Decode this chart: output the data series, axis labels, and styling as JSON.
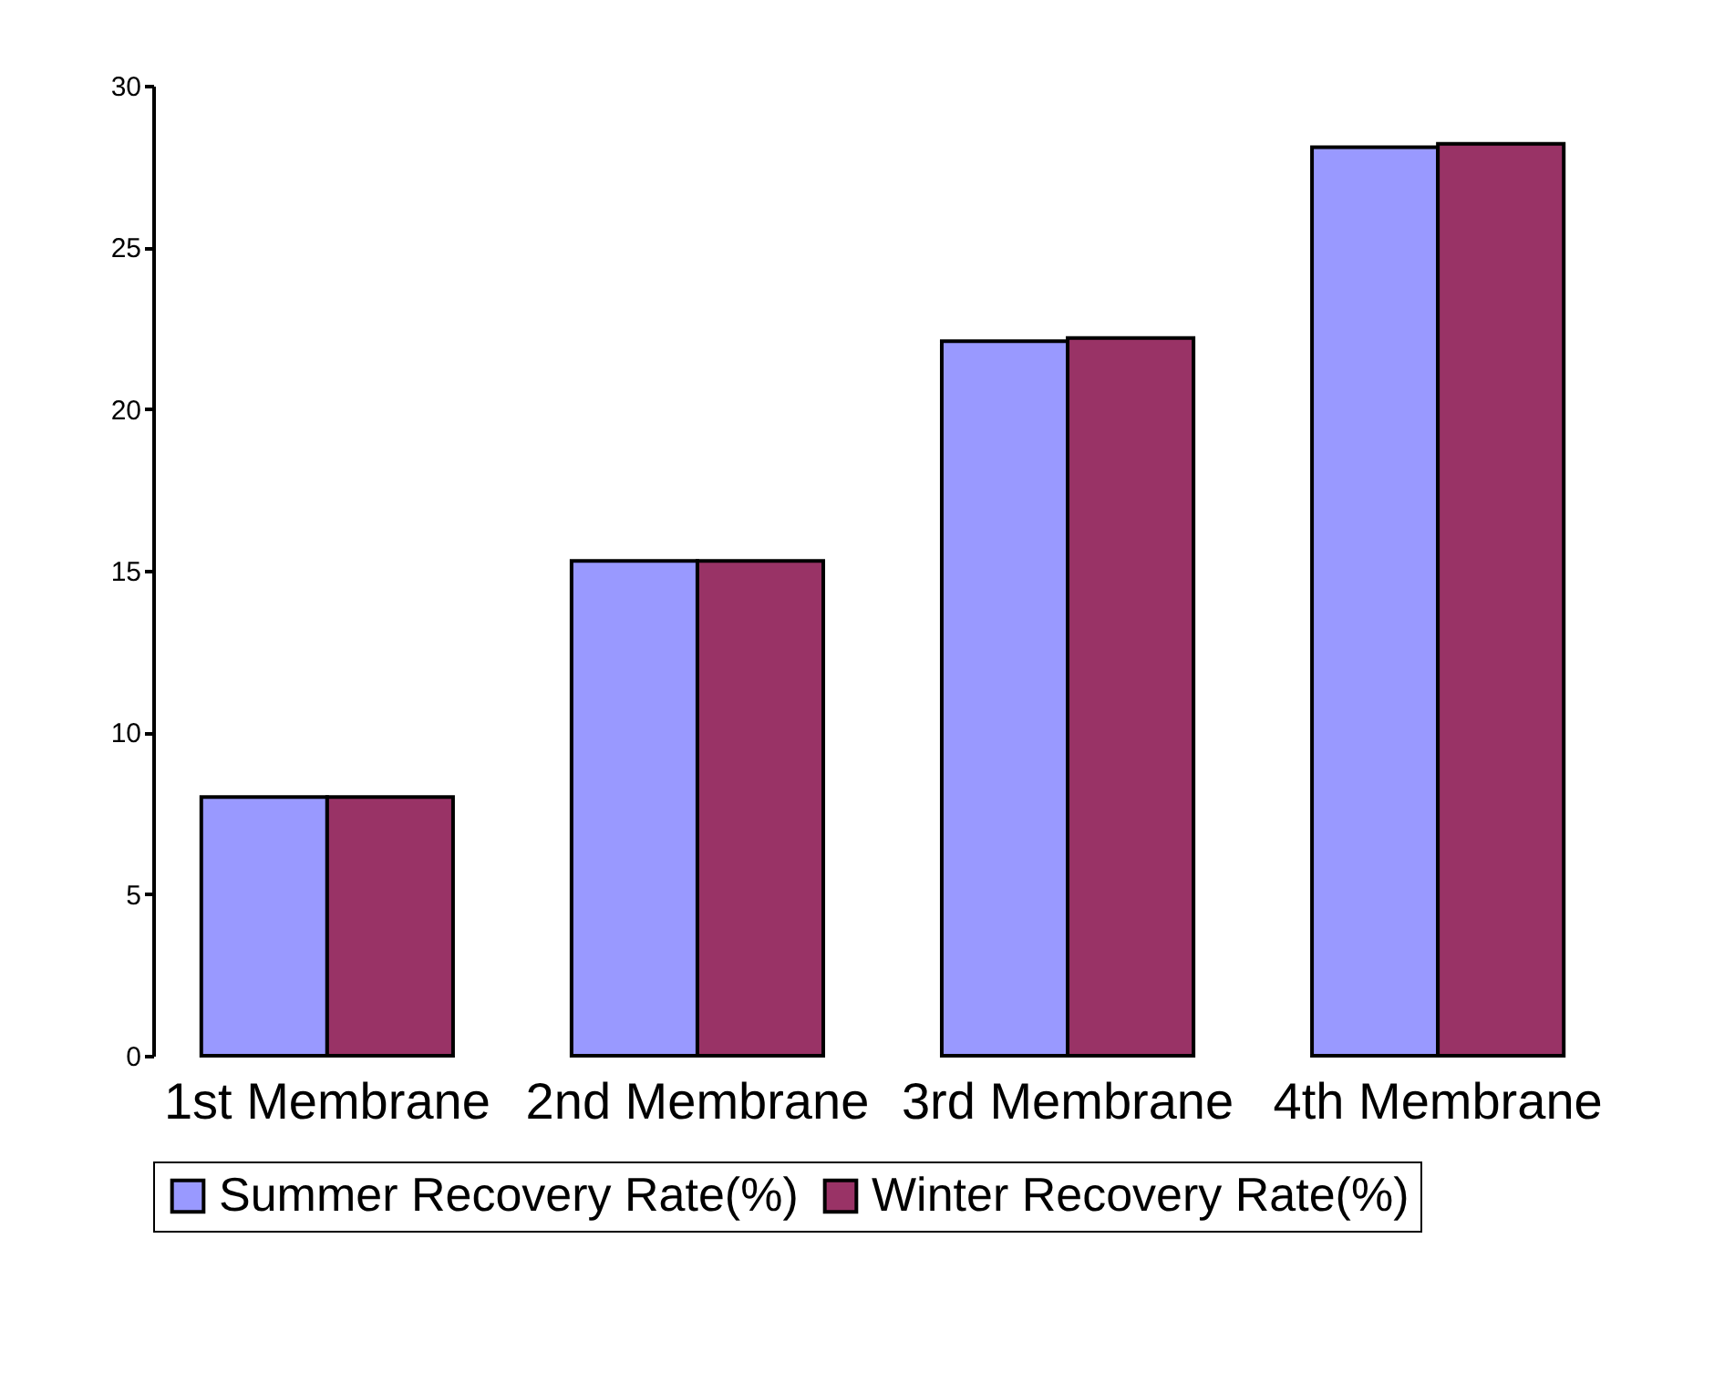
{
  "chart_data": {
    "type": "bar",
    "categories": [
      "1st Membrane",
      "2nd Membrane",
      "3rd Membrane",
      "4th Membrane"
    ],
    "series": [
      {
        "name": "Summer Recovery Rate(%)",
        "color": "#9999ff",
        "values": [
          8,
          15.3,
          22.1,
          28.1
        ]
      },
      {
        "name": "Winter Recovery Rate(%)",
        "color": "#993366",
        "values": [
          8,
          15.3,
          22.2,
          28.2
        ]
      }
    ],
    "ylim": [
      0,
      30
    ],
    "yticks": [
      0,
      5,
      10,
      15,
      20,
      25,
      30
    ],
    "grid": false,
    "legend": "bottom"
  }
}
